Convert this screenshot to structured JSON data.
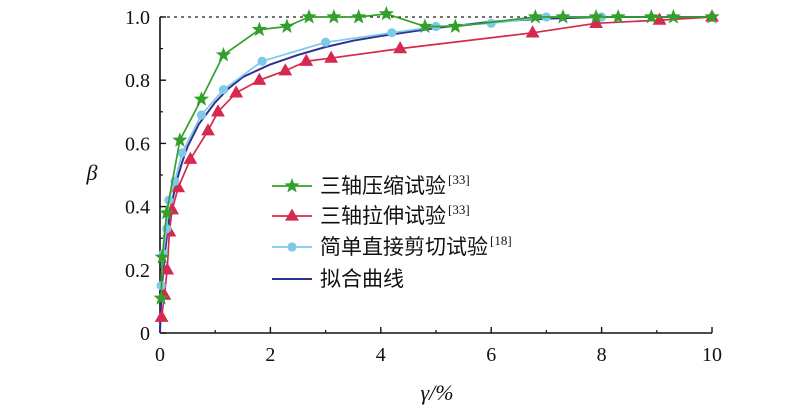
{
  "chart_data": {
    "type": "line",
    "xlabel": "γ/%",
    "ylabel": "β",
    "xlim": [
      0,
      10
    ],
    "ylim": [
      0,
      1.0
    ],
    "x_ticks": [
      0,
      2,
      4,
      6,
      8,
      10
    ],
    "y_ticks": [
      0,
      0.2,
      0.4,
      0.6,
      0.8,
      1.0
    ],
    "x_tick_labels": [
      "0",
      "2",
      "4",
      "6",
      "8",
      "10"
    ],
    "y_tick_labels": [
      "0",
      "0.2",
      "0.4",
      "0.6",
      "0.8",
      "1.0"
    ],
    "reference_line_y": 1.0,
    "grid": false,
    "legend_position": "center",
    "series": [
      {
        "name": "三轴压缩试验",
        "ref": "[33]",
        "color": "#33a02c",
        "marker": "star",
        "points": [
          [
            0.02,
            0.11
          ],
          [
            0.04,
            0.24
          ],
          [
            0.12,
            0.38
          ],
          [
            0.36,
            0.61
          ],
          [
            0.75,
            0.74
          ],
          [
            1.15,
            0.88
          ],
          [
            1.8,
            0.96
          ],
          [
            2.3,
            0.97
          ],
          [
            2.7,
            1.0
          ],
          [
            3.15,
            1.0
          ],
          [
            3.6,
            1.0
          ],
          [
            4.1,
            1.01
          ],
          [
            4.8,
            0.97
          ],
          [
            5.35,
            0.97
          ],
          [
            6.8,
            1.0
          ],
          [
            7.3,
            1.0
          ],
          [
            7.9,
            1.0
          ],
          [
            8.3,
            1.0
          ],
          [
            8.9,
            1.0
          ],
          [
            9.3,
            1.0
          ],
          [
            10.0,
            1.0
          ]
        ]
      },
      {
        "name": "三轴拉伸试验",
        "ref": "[33]",
        "color": "#d6294f",
        "marker": "triangle",
        "points": [
          [
            0.03,
            0.05
          ],
          [
            0.08,
            0.12
          ],
          [
            0.13,
            0.2
          ],
          [
            0.17,
            0.32
          ],
          [
            0.22,
            0.39
          ],
          [
            0.33,
            0.46
          ],
          [
            0.55,
            0.55
          ],
          [
            0.87,
            0.64
          ],
          [
            1.05,
            0.7
          ],
          [
            1.38,
            0.76
          ],
          [
            1.8,
            0.8
          ],
          [
            2.27,
            0.83
          ],
          [
            2.65,
            0.86
          ],
          [
            3.1,
            0.87
          ],
          [
            4.35,
            0.9
          ],
          [
            6.75,
            0.95
          ],
          [
            7.9,
            0.98
          ],
          [
            9.05,
            0.99
          ],
          [
            10.0,
            1.0
          ]
        ]
      },
      {
        "name": "简单直接剪切试验",
        "ref": "[18]",
        "color": "#7ec8e8",
        "marker": "circle",
        "points": [
          [
            0.02,
            0.15
          ],
          [
            0.06,
            0.25
          ],
          [
            0.12,
            0.33
          ],
          [
            0.16,
            0.42
          ],
          [
            0.27,
            0.48
          ],
          [
            0.4,
            0.57
          ],
          [
            0.75,
            0.69
          ],
          [
            1.15,
            0.77
          ],
          [
            1.85,
            0.86
          ],
          [
            3.0,
            0.92
          ],
          [
            4.2,
            0.95
          ],
          [
            5.0,
            0.97
          ],
          [
            6.0,
            0.98
          ],
          [
            7.0,
            1.0
          ],
          [
            8.0,
            1.0
          ]
        ]
      },
      {
        "name": "拟合曲线",
        "ref": "",
        "color": "#2e3192",
        "marker": "none",
        "points": [
          [
            0.0,
            0.0
          ],
          [
            0.02,
            0.1
          ],
          [
            0.05,
            0.18
          ],
          [
            0.1,
            0.27
          ],
          [
            0.15,
            0.34
          ],
          [
            0.2,
            0.4
          ],
          [
            0.3,
            0.48
          ],
          [
            0.4,
            0.54
          ],
          [
            0.5,
            0.59
          ],
          [
            0.7,
            0.66
          ],
          [
            1.0,
            0.73
          ],
          [
            1.25,
            0.775
          ],
          [
            1.5,
            0.81
          ],
          [
            2.0,
            0.85
          ],
          [
            2.5,
            0.88
          ],
          [
            3.0,
            0.905
          ],
          [
            3.5,
            0.925
          ],
          [
            4.0,
            0.94
          ],
          [
            5.0,
            0.965
          ],
          [
            6.0,
            0.985
          ],
          [
            7.0,
            0.995
          ],
          [
            8.0,
            1.0
          ],
          [
            9.0,
            1.0
          ],
          [
            10.0,
            1.0
          ]
        ]
      }
    ]
  }
}
